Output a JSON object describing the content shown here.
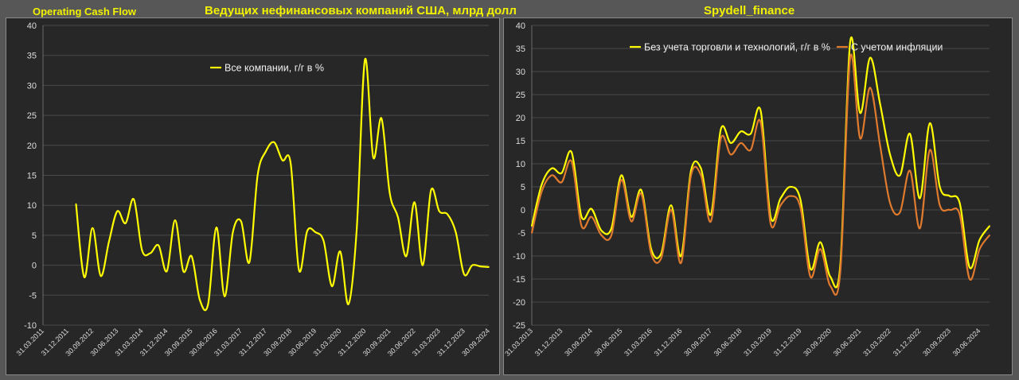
{
  "header": {
    "left_label": "Operating Cash Flow",
    "center_title": "Ведущих нефинансовых компаний США, млрд долл",
    "right_label": "Spydell_finance"
  },
  "colors": {
    "yellow": "#ffff00",
    "orange": "#e07a2e",
    "grid": "#4a4a4a",
    "panel": "#272727",
    "page": "#575757",
    "title": "#f2f200"
  },
  "chart_data": [
    {
      "type": "line",
      "title": "",
      "ylim": [
        -10,
        40
      ],
      "ytick_step": 5,
      "grid": true,
      "legend_placement": "top-center",
      "xlim": [
        0,
        54
      ],
      "x_tick_positions": [
        0,
        3,
        6,
        9,
        12,
        15,
        18,
        21,
        24,
        27,
        30,
        33,
        36,
        39,
        42,
        45,
        48,
        51,
        54
      ],
      "x_tick_labels": [
        "31.03.2011",
        "31.12.2011",
        "30.09.2012",
        "30.06.2013",
        "31.03.2014",
        "31.12.2014",
        "30.09.2015",
        "30.06.2016",
        "31.03.2017",
        "31.12.2017",
        "30.09.2018",
        "30.06.2019",
        "31.03.2020",
        "31.12.2020",
        "30.09.2021",
        "30.06.2022",
        "31.03.2023",
        "31.12.2023",
        "30.09.2024"
      ],
      "series": [
        {
          "name": "Все компании, г/г в %",
          "color": "#ffff00",
          "x": [
            4,
            5,
            6,
            7,
            8,
            9,
            10,
            11,
            12,
            13,
            14,
            15,
            16,
            17,
            18,
            19,
            20,
            21,
            22,
            23,
            24,
            25,
            26,
            27,
            28,
            29,
            30,
            31,
            32,
            33,
            34,
            35,
            36,
            37,
            38,
            39,
            40,
            41,
            42,
            43,
            44,
            45,
            46,
            47,
            48,
            49,
            50,
            51,
            52,
            53,
            54
          ],
          "y": [
            10.2,
            -2,
            6.2,
            -1.8,
            4,
            9,
            7,
            11,
            2.5,
            2,
            3.3,
            -1,
            7.5,
            -1,
            1.5,
            -5.8,
            -6.5,
            6.3,
            -5.2,
            5.5,
            7.3,
            0.5,
            15,
            19,
            20.5,
            17.5,
            17,
            -0.8,
            5.7,
            5.5,
            4,
            -3.5,
            2.3,
            -6.5,
            6,
            34.3,
            18,
            24.5,
            12,
            8,
            1.5,
            10.5,
            0,
            12.5,
            9,
            8.5,
            5.5,
            -1.5,
            0,
            -0.2,
            -0.3
          ]
        }
      ]
    },
    {
      "type": "line",
      "title": "",
      "ylim": [
        -25,
        40
      ],
      "ytick_step": 5,
      "grid": true,
      "legend_placement": "top-right",
      "xlim": [
        0,
        46
      ],
      "x_tick_positions": [
        0,
        3,
        6,
        9,
        12,
        15,
        18,
        21,
        24,
        27,
        30,
        33,
        36,
        39,
        42,
        45
      ],
      "x_tick_labels": [
        "31.03.2013",
        "31.12.2013",
        "30.09.2014",
        "30.06.2015",
        "31.03.2016",
        "31.12.2016",
        "30.09.2017",
        "30.06.2018",
        "31.03.2019",
        "31.12.2019",
        "30.09.2020",
        "30.06.2021",
        "31.03.2022",
        "31.12.2022",
        "30.09.2023",
        "30.06.2024"
      ],
      "series": [
        {
          "name": "Без учета торговли и технологий, г/г в %",
          "color": "#ffff00",
          "x": [
            0,
            1,
            2,
            3,
            4,
            5,
            6,
            7,
            8,
            9,
            10,
            11,
            12,
            13,
            14,
            15,
            16,
            17,
            18,
            19,
            20,
            21,
            22,
            23,
            24,
            25,
            26,
            27,
            28,
            29,
            30,
            31,
            32,
            33,
            34,
            35,
            36,
            37,
            38,
            39,
            40,
            41,
            42,
            43,
            44,
            45,
            46
          ],
          "y": [
            -3.5,
            5.5,
            9,
            8,
            12.5,
            -1.5,
            0.2,
            -4.5,
            -4,
            7.5,
            -1.5,
            4.3,
            -8.5,
            -9.5,
            1,
            -10,
            8.5,
            9,
            -1,
            17.5,
            14.5,
            17,
            16.5,
            21.5,
            -1.5,
            2.5,
            5,
            2.2,
            -12.8,
            -7,
            -14.5,
            -12,
            36.5,
            21,
            33,
            23,
            12,
            7.5,
            16.5,
            2.5,
            18.8,
            5,
            3,
            1.5,
            -12.5,
            -6.5,
            -3.5
          ]
        },
        {
          "name": "С учетом инфляции",
          "color": "#e07a2e",
          "x": [
            0,
            1,
            2,
            3,
            4,
            5,
            6,
            7,
            8,
            9,
            10,
            11,
            12,
            13,
            14,
            15,
            16,
            17,
            18,
            19,
            20,
            21,
            22,
            23,
            24,
            25,
            26,
            27,
            28,
            29,
            30,
            31,
            32,
            33,
            34,
            35,
            36,
            37,
            38,
            39,
            40,
            41,
            42,
            43,
            44,
            45,
            46
          ],
          "y": [
            -5,
            4,
            7.5,
            6,
            10.5,
            -3.5,
            -1.5,
            -5.5,
            -5.5,
            6.5,
            -2.5,
            3.5,
            -9.5,
            -10.5,
            0,
            -11.5,
            7.5,
            7.5,
            -2.5,
            15.5,
            12,
            14.5,
            13,
            19,
            -3,
            1,
            3,
            0.5,
            -14.5,
            -8.5,
            -16.5,
            -13.5,
            33,
            15.5,
            26.5,
            14,
            1.5,
            -0.5,
            8.5,
            -4,
            13,
            1,
            0,
            -1,
            -15,
            -8.5,
            -5.5
          ]
        }
      ]
    }
  ]
}
